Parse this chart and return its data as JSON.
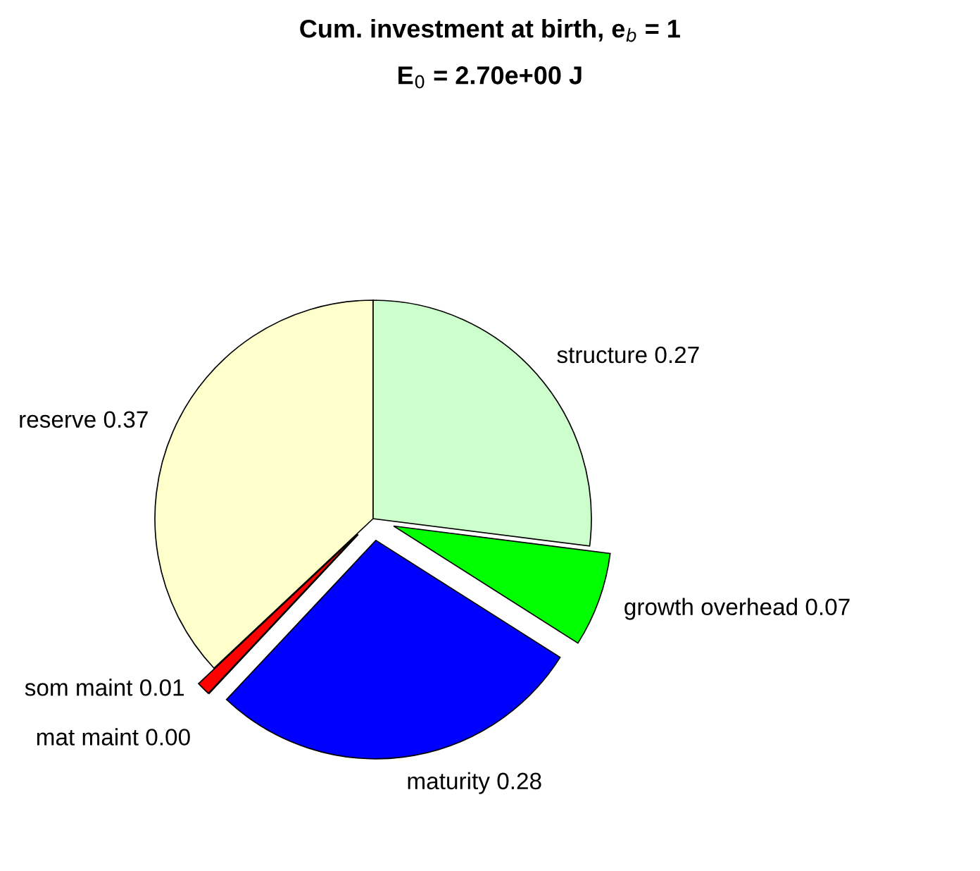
{
  "chart_data": {
    "type": "pie",
    "title": "Cum. investment at birth, e$_{b}$ = 1",
    "subtitle": "E$_{0}$ = 2.70e+00 J",
    "categories": [
      "reserve",
      "som maint",
      "mat maint",
      "maturity",
      "growth overhead",
      "structure"
    ],
    "values": [
      0.37,
      0.01,
      0.0,
      0.28,
      0.07,
      0.27
    ],
    "value_labels": [
      "0.37",
      "0.01",
      "0.00",
      "0.28",
      "0.07",
      "0.27"
    ],
    "colors": [
      "#ffffcc",
      "#ff0000",
      "#ff00ff",
      "#0000ff",
      "#00ff00",
      "#ccffcc"
    ]
  }
}
